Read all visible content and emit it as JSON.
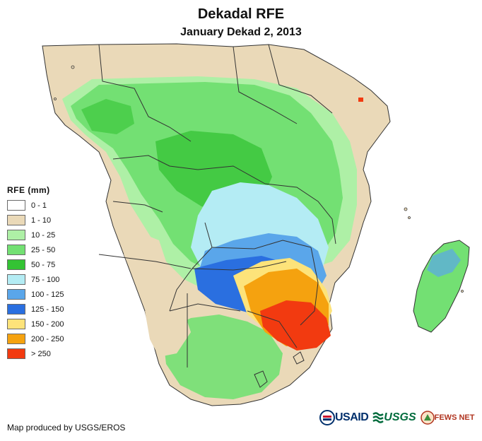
{
  "title": "Dekadal RFE",
  "subtitle": "January Dekad 2, 2013",
  "legend": {
    "title": "RFE (mm)",
    "items": [
      {
        "label": "0 - 1",
        "color": "#ffffff"
      },
      {
        "label": "1 - 10",
        "color": "#ead9b8"
      },
      {
        "label": "10 - 25",
        "color": "#aef0a6"
      },
      {
        "label": "25 - 50",
        "color": "#73e073"
      },
      {
        "label": "50 - 75",
        "color": "#34c334"
      },
      {
        "label": "75 - 100",
        "color": "#b4ecf4"
      },
      {
        "label": "100 - 125",
        "color": "#5aa6ea"
      },
      {
        "label": "125 - 150",
        "color": "#2a6fe0"
      },
      {
        "label": "150 - 200",
        "color": "#fde37a"
      },
      {
        "label": "200 - 250",
        "color": "#f5a20f"
      },
      {
        "label": "> 250",
        "color": "#f23a10"
      }
    ]
  },
  "credit": "Map produced by USGS/EROS",
  "logos": {
    "usaid": "USAID",
    "usgs": "USGS",
    "fews": "FEWS NET"
  }
}
